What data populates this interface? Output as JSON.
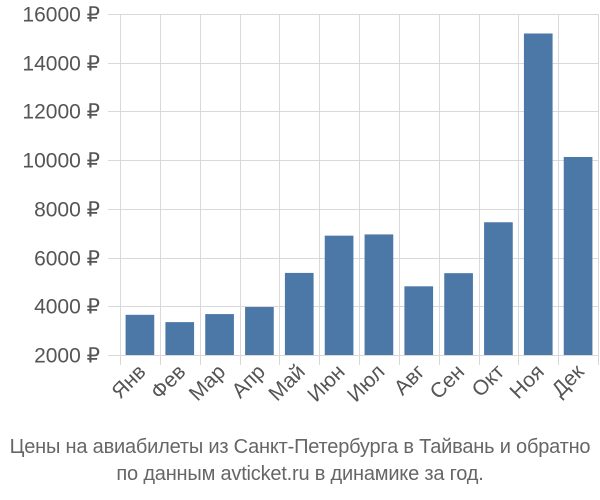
{
  "chart_data": {
    "type": "bar",
    "categories": [
      "Янв",
      "Фев",
      "Мар",
      "Апр",
      "Май",
      "Июн",
      "Июл",
      "Авг",
      "Сен",
      "Окт",
      "Ноя",
      "Дек"
    ],
    "values": [
      3650,
      3350,
      3680,
      3970,
      5370,
      6900,
      6950,
      4820,
      5360,
      7450,
      15200,
      10130
    ],
    "ylim": [
      2000,
      16000
    ],
    "yticks": [
      2000,
      4000,
      6000,
      8000,
      10000,
      12000,
      14000,
      16000
    ],
    "ytick_labels": [
      "2000 ₽",
      "4000 ₽",
      "6000 ₽",
      "8000 ₽",
      "10000 ₽",
      "12000 ₽",
      "14000 ₽",
      "16000 ₽"
    ],
    "grid": "horizontal",
    "bar_color": "#4c78a8",
    "title": "",
    "xlabel": "",
    "ylabel": ""
  },
  "caption": {
    "line1": "Цены на авиабилеты из Санкт-Петербурга в Тайвань и обратно",
    "line2": "по данным avticket.ru в динамике за год."
  }
}
